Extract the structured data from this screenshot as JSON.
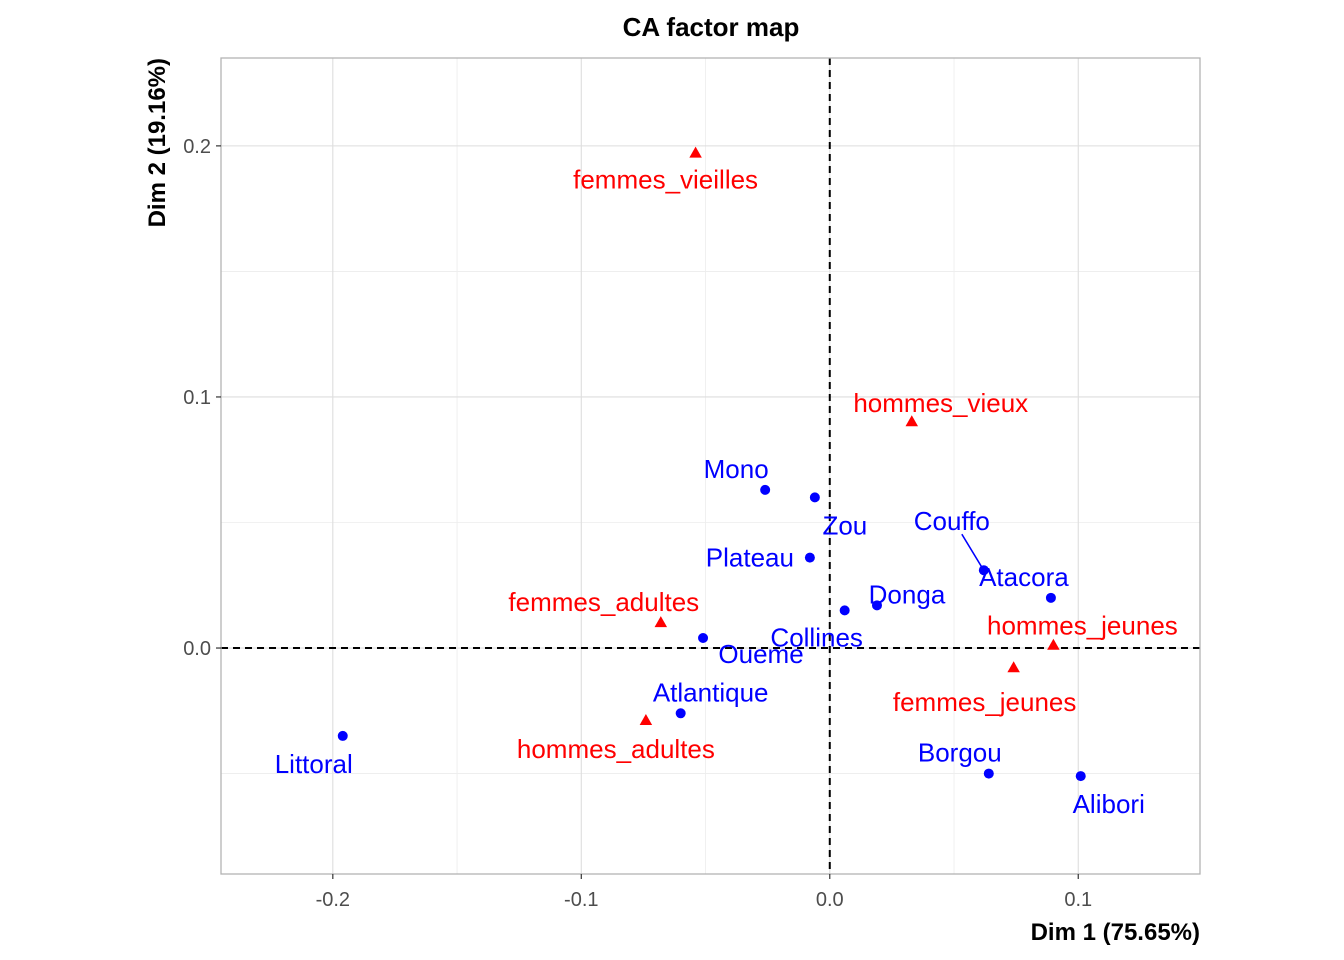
{
  "chart_data": {
    "type": "scatter",
    "title": "CA factor map",
    "xlabel": "Dim 1 (75.65%)",
    "ylabel": "Dim 2 (19.16%)",
    "xlim": [
      -0.245,
      0.149
    ],
    "ylim": [
      -0.09,
      0.235
    ],
    "x_ticks": [
      -0.2,
      -0.1,
      0.0,
      0.1
    ],
    "x_tick_labels": [
      "-0.2",
      "-0.1",
      "0.0",
      "0.1"
    ],
    "y_ticks": [
      0.0,
      0.1,
      0.2
    ],
    "y_tick_labels": [
      "0.0",
      "0.1",
      "0.2"
    ],
    "grid": true,
    "reference_lines": {
      "x": 0,
      "y": 0,
      "style": "dashed"
    },
    "colors": {
      "rows": "#0000ff",
      "columns": "#ff0000"
    },
    "series": [
      {
        "marker": "circle",
        "color": "#0000ff",
        "points": [
          {
            "label": "Littoral",
            "x": -0.196,
            "y": -0.035
          },
          {
            "label": "Atlantique",
            "x": -0.06,
            "y": -0.026
          },
          {
            "label": "Oueme",
            "x": -0.051,
            "y": 0.004
          },
          {
            "label": "Mono",
            "x": -0.026,
            "y": 0.063
          },
          {
            "label": "Zou",
            "x": -0.006,
            "y": 0.06
          },
          {
            "label": "Plateau",
            "x": -0.008,
            "y": 0.036
          },
          {
            "label": "Collines",
            "x": 0.006,
            "y": 0.015
          },
          {
            "label": "Donga",
            "x": 0.019,
            "y": 0.017
          },
          {
            "label": "Couffo",
            "x": 0.062,
            "y": 0.031
          },
          {
            "label": "Atacora",
            "x": 0.089,
            "y": 0.02
          },
          {
            "label": "Borgou",
            "x": 0.064,
            "y": -0.05
          },
          {
            "label": "Alibori",
            "x": 0.101,
            "y": -0.051
          }
        ]
      },
      {
        "marker": "triangle",
        "color": "#ff0000",
        "points": [
          {
            "label": "femmes_vieilles",
            "x": -0.054,
            "y": 0.197
          },
          {
            "label": "hommes_vieux",
            "x": 0.033,
            "y": 0.09
          },
          {
            "label": "femmes_adultes",
            "x": -0.068,
            "y": 0.01
          },
          {
            "label": "hommes_adultes",
            "x": -0.074,
            "y": -0.029
          },
          {
            "label": "hommes_jeunes",
            "x": 0.09,
            "y": 0.001
          },
          {
            "label": "femmes_jeunes",
            "x": 0.074,
            "y": -0.008
          }
        ]
      }
    ]
  }
}
